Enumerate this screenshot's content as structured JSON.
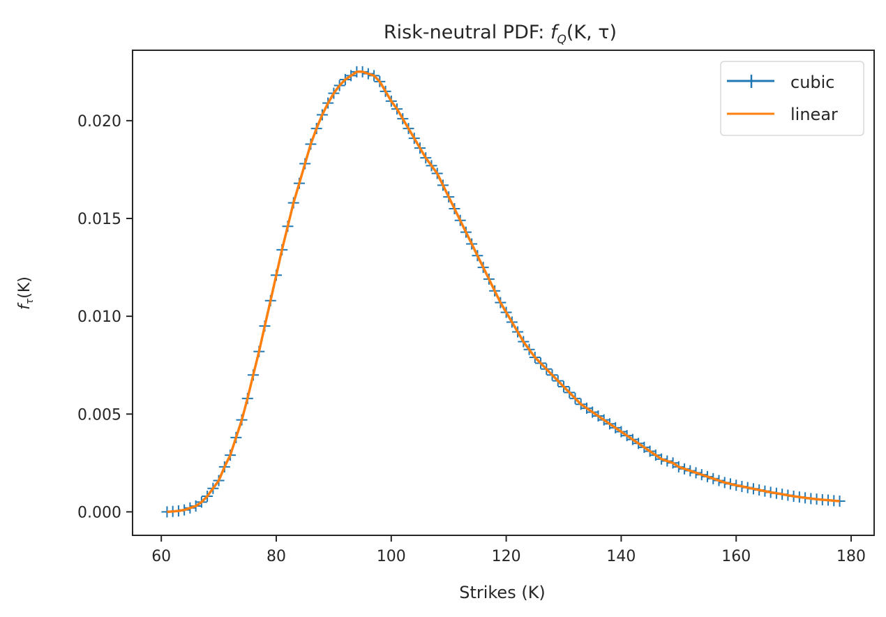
{
  "chart_data": {
    "type": "line",
    "title": {
      "prefix": "Risk-neutral PDF: ",
      "func": "f",
      "sub": "Q",
      "suffix": "(K, τ)"
    },
    "xlabel": "Strikes (K)",
    "ylabel": {
      "func": "f",
      "sub": "τ",
      "suffix": "(K)"
    },
    "xlim": [
      55,
      184
    ],
    "ylim": [
      -0.0012,
      0.0236
    ],
    "xticks": [
      "60",
      "80",
      "100",
      "120",
      "140",
      "160",
      "180"
    ],
    "yticks": [
      "0.000",
      "0.005",
      "0.010",
      "0.015",
      "0.020"
    ],
    "grid": false,
    "legend_position": "top-right",
    "x": {
      "start": 61,
      "end": 178,
      "step": 1
    },
    "series": [
      {
        "name": "cubic",
        "color": "#1f77b4",
        "marker": "+",
        "values": [
          0.0,
          2e-05,
          5e-05,
          0.0001,
          0.0002,
          0.0003,
          0.0005,
          0.0008,
          0.0012,
          0.0016,
          0.0023,
          0.0029,
          0.0038,
          0.0047,
          0.0058,
          0.007,
          0.0082,
          0.0095,
          0.0108,
          0.0121,
          0.0134,
          0.0146,
          0.0158,
          0.0168,
          0.0178,
          0.0188,
          0.0196,
          0.0203,
          0.0209,
          0.0214,
          0.0218,
          0.0221,
          0.0223,
          0.0225,
          0.0225,
          0.0224,
          0.0223,
          0.022,
          0.0215,
          0.021,
          0.0206,
          0.0201,
          0.0196,
          0.0191,
          0.0186,
          0.0181,
          0.0177,
          0.0173,
          0.0167,
          0.0161,
          0.0155,
          0.0149,
          0.0143,
          0.0137,
          0.0131,
          0.0125,
          0.0119,
          0.0113,
          0.0107,
          0.0102,
          0.0097,
          0.0092,
          0.0087,
          0.0083,
          0.0079,
          0.0076,
          0.0073,
          0.007,
          0.0067,
          0.0064,
          0.0061,
          0.0058,
          0.0055,
          0.0053,
          0.0051,
          0.0049,
          0.0047,
          0.0045,
          0.0043,
          0.0041,
          0.0039,
          0.0037,
          0.0035,
          0.0033,
          0.0031,
          0.0029,
          0.0027,
          0.0026,
          0.0025,
          0.0023,
          0.0022,
          0.0021,
          0.002,
          0.0019,
          0.0018,
          0.0017,
          0.0016,
          0.0015,
          0.00143,
          0.00136,
          0.0013,
          0.00124,
          0.00118,
          0.00112,
          0.00106,
          0.001,
          0.00095,
          0.0009,
          0.00085,
          0.0008,
          0.00076,
          0.00072,
          0.00068,
          0.00065,
          0.00062,
          0.0006,
          0.00057,
          0.00055
        ]
      },
      {
        "name": "linear",
        "color": "#ff7f0e",
        "marker": "",
        "values": [
          0.0,
          2e-05,
          5e-05,
          0.0001,
          0.0002,
          0.0003,
          0.0005,
          0.0008,
          0.0012,
          0.0016,
          0.0023,
          0.0029,
          0.0038,
          0.0047,
          0.0058,
          0.007,
          0.0082,
          0.0095,
          0.0108,
          0.0121,
          0.0134,
          0.0146,
          0.0158,
          0.0168,
          0.0178,
          0.0188,
          0.0196,
          0.0203,
          0.0209,
          0.0214,
          0.0218,
          0.0221,
          0.0223,
          0.0225,
          0.0225,
          0.0224,
          0.0223,
          0.022,
          0.0215,
          0.021,
          0.0206,
          0.0201,
          0.0196,
          0.0191,
          0.0186,
          0.0181,
          0.0177,
          0.0173,
          0.0167,
          0.0161,
          0.0155,
          0.0149,
          0.0143,
          0.0137,
          0.0131,
          0.0125,
          0.0119,
          0.0113,
          0.0107,
          0.0102,
          0.0097,
          0.0092,
          0.0087,
          0.0083,
          0.0079,
          0.0076,
          0.0073,
          0.007,
          0.0067,
          0.0064,
          0.0061,
          0.0058,
          0.0055,
          0.0053,
          0.0051,
          0.0049,
          0.0047,
          0.0045,
          0.0043,
          0.0041,
          0.0039,
          0.0037,
          0.0035,
          0.0033,
          0.0031,
          0.0029,
          0.0027,
          0.0026,
          0.0025,
          0.0023,
          0.0022,
          0.0021,
          0.002,
          0.0019,
          0.0018,
          0.0017,
          0.0016,
          0.0015,
          0.00143,
          0.00136,
          0.0013,
          0.00124,
          0.00118,
          0.00112,
          0.00106,
          0.001,
          0.00095,
          0.0009,
          0.00085,
          0.0008,
          0.00076,
          0.00072,
          0.00068,
          0.00065,
          0.00062,
          0.0006,
          0.00057,
          0.00055
        ]
      }
    ]
  }
}
